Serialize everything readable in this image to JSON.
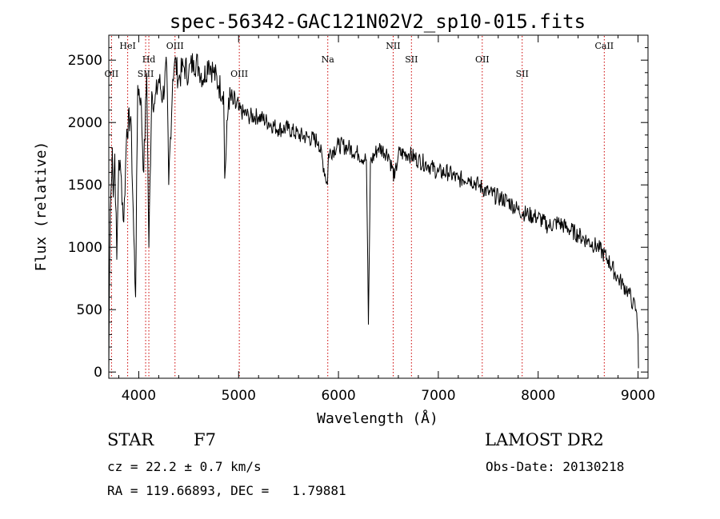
{
  "chart_data": {
    "type": "line",
    "title": "spec-56342-GAC121N02V2_sp10-015.fits",
    "xlabel": "Wavelength (Å)",
    "ylabel": "Flux (relative)",
    "xlim": [
      3700,
      9100
    ],
    "ylim": [
      -50,
      2700
    ],
    "xticks": [
      4000,
      5000,
      6000,
      7000,
      8000,
      9000
    ],
    "xtick_labels": [
      "4000",
      "5000",
      "6000",
      "7000",
      "8000",
      "9000"
    ],
    "yticks": [
      0,
      500,
      1000,
      1500,
      2000,
      2500
    ],
    "ytick_labels": [
      "0",
      "500",
      "1000",
      "1500",
      "2000",
      "2500"
    ],
    "grid": false,
    "series": [
      {
        "name": "spectrum",
        "x": [
          3700,
          3705,
          3715,
          3725,
          3735,
          3745,
          3760,
          3780,
          3800,
          3820,
          3850,
          3880,
          3920,
          3950,
          3968,
          3990,
          4020,
          4050,
          4080,
          4101,
          4130,
          4160,
          4200,
          4240,
          4280,
          4300,
          4340,
          4360,
          4400,
          4450,
          4500,
          4550,
          4600,
          4650,
          4700,
          4750,
          4800,
          4850,
          4861,
          4900,
          4950,
          5000,
          5100,
          5200,
          5300,
          5400,
          5500,
          5600,
          5700,
          5800,
          5890,
          5900,
          6000,
          6100,
          6200,
          6280,
          6300,
          6320,
          6400,
          6500,
          6563,
          6600,
          6700,
          6800,
          6900,
          7000,
          7100,
          7200,
          7300,
          7400,
          7500,
          7600,
          7700,
          7800,
          7900,
          8000,
          8100,
          8200,
          8300,
          8400,
          8500,
          8600,
          8700,
          8800,
          8850,
          8900,
          8950,
          8980,
          9000,
          9005
        ],
        "values": [
          0,
          600,
          1300,
          1500,
          1800,
          1400,
          1750,
          900,
          1700,
          1600,
          1200,
          1950,
          2050,
          1100,
          600,
          2300,
          2200,
          1600,
          2400,
          1000,
          2250,
          2150,
          2350,
          2200,
          2450,
          1500,
          2350,
          2500,
          2350,
          2450,
          2400,
          2500,
          2450,
          2350,
          2500,
          2400,
          2300,
          2250,
          1550,
          2200,
          2150,
          2100,
          2050,
          2050,
          2000,
          1950,
          1950,
          1900,
          1880,
          1850,
          1500,
          1750,
          1820,
          1800,
          1750,
          1700,
          380,
          1680,
          1800,
          1750,
          1550,
          1750,
          1750,
          1700,
          1660,
          1600,
          1600,
          1540,
          1560,
          1500,
          1440,
          1400,
          1370,
          1300,
          1260,
          1240,
          1170,
          1200,
          1150,
          1100,
          1050,
          1000,
          900,
          750,
          700,
          650,
          550,
          500,
          300,
          30
        ]
      }
    ],
    "lines": [
      {
        "label": "OII",
        "x": 3727,
        "row": 2
      },
      {
        "label": "HeI",
        "x": 3889,
        "row": 0
      },
      {
        "label": "Hd",
        "x": 4101,
        "row": 1
      },
      {
        "label": "SIII",
        "x": 4069,
        "row": 2
      },
      {
        "label": "OIII",
        "x": 4363,
        "row": 0
      },
      {
        "label": "OIII",
        "x": 5007,
        "row": 2
      },
      {
        "label": "Na",
        "x": 5893,
        "row": 1
      },
      {
        "label": "NII",
        "x": 6548,
        "row": 0
      },
      {
        "label": "SII",
        "x": 6731,
        "row": 1
      },
      {
        "label": "OII",
        "x": 7440,
        "row": 1
      },
      {
        "label": "SII",
        "x": 7840,
        "row": 2
      },
      {
        "label": "CaII",
        "x": 8662,
        "row": 0
      }
    ]
  },
  "info": {
    "object_class": "STAR",
    "subclass": "F7",
    "survey": "LAMOST DR2",
    "redshift": "cz = 22.2 ± 0.7 km/s",
    "obs_date": "Obs-Date: 20130218",
    "coords": "RA = 119.66893, DEC =   1.79881"
  },
  "colors": {
    "line_marker": "#cc0000",
    "spectrum": "#000000",
    "axes": "#000000",
    "background": "#ffffff"
  }
}
